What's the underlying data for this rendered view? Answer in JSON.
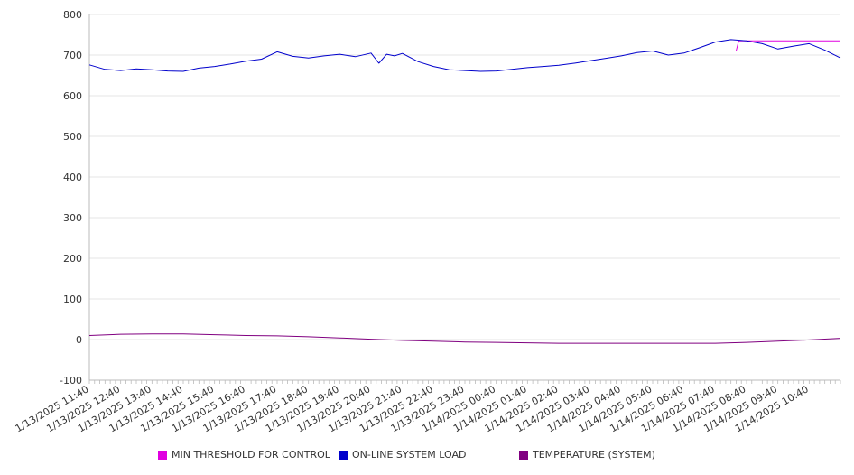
{
  "chart_data": {
    "type": "line",
    "title": "",
    "xlabel": "",
    "ylabel": "",
    "ylim": [
      -100,
      800
    ],
    "yticks": [
      -100,
      0,
      100,
      200,
      300,
      400,
      500,
      600,
      700,
      800
    ],
    "grid": true,
    "legend_position": "bottom",
    "x_range": [
      "1/13/2025 11:40",
      "1/14/2025 11:40"
    ],
    "xtick_labels": [
      "1/13/2025 11:40",
      "1/13/2025 12:40",
      "1/13/2025 13:40",
      "1/13/2025 14:40",
      "1/13/2025 15:40",
      "1/13/2025 16:40",
      "1/13/2025 17:40",
      "1/13/2025 18:40",
      "1/13/2025 19:40",
      "1/13/2025 20:40",
      "1/13/2025 21:40",
      "1/13/2025 22:40",
      "1/13/2025 23:40",
      "1/14/2025 00:40",
      "1/14/2025 01:40",
      "1/14/2025 02:40",
      "1/14/2025 03:40",
      "1/14/2025 04:40",
      "1/14/2025 05:40",
      "1/14/2025 06:40",
      "1/14/2025 07:40",
      "1/14/2025 08:40",
      "1/14/2025 09:40",
      "1/14/2025 10:40"
    ],
    "series": [
      {
        "name": "MIN THRESHOLD FOR CONTROL",
        "color": "#e000e0",
        "x": [
          "1/13/2025 11:40",
          "1/14/2025 08:20",
          "1/14/2025 08:25",
          "1/14/2025 11:40"
        ],
        "values": [
          710,
          710,
          735,
          735
        ]
      },
      {
        "name": "ON-LINE SYSTEM LOAD",
        "color": "#0000cc",
        "x": [
          "1/13/2025 11:40",
          "1/13/2025 12:10",
          "1/13/2025 12:40",
          "1/13/2025 13:10",
          "1/13/2025 13:40",
          "1/13/2025 14:10",
          "1/13/2025 14:40",
          "1/13/2025 15:10",
          "1/13/2025 15:40",
          "1/13/2025 16:10",
          "1/13/2025 16:40",
          "1/13/2025 17:10",
          "1/13/2025 17:40",
          "1/13/2025 18:10",
          "1/13/2025 18:40",
          "1/13/2025 19:10",
          "1/13/2025 19:40",
          "1/13/2025 20:10",
          "1/13/2025 20:40",
          "1/13/2025 20:55",
          "1/13/2025 21:10",
          "1/13/2025 21:25",
          "1/13/2025 21:40",
          "1/13/2025 22:10",
          "1/13/2025 22:40",
          "1/13/2025 23:10",
          "1/13/2025 23:40",
          "1/14/2025 00:10",
          "1/14/2025 00:40",
          "1/14/2025 01:10",
          "1/14/2025 01:40",
          "1/14/2025 02:10",
          "1/14/2025 02:40",
          "1/14/2025 03:10",
          "1/14/2025 03:40",
          "1/14/2025 04:10",
          "1/14/2025 04:40",
          "1/14/2025 05:10",
          "1/14/2025 05:40",
          "1/14/2025 06:10",
          "1/14/2025 06:40",
          "1/14/2025 07:10",
          "1/14/2025 07:40",
          "1/14/2025 08:10",
          "1/14/2025 08:40",
          "1/14/2025 09:10",
          "1/14/2025 09:40",
          "1/14/2025 10:10",
          "1/14/2025 10:40",
          "1/14/2025 11:10",
          "1/14/2025 11:40"
        ],
        "values": [
          676,
          665,
          662,
          666,
          664,
          661,
          660,
          668,
          672,
          678,
          685,
          690,
          708,
          697,
          693,
          698,
          702,
          696,
          705,
          680,
          702,
          698,
          704,
          684,
          672,
          664,
          662,
          660,
          661,
          665,
          669,
          672,
          675,
          680,
          686,
          692,
          698,
          706,
          710,
          700,
          705,
          718,
          732,
          738,
          735,
          728,
          715,
          722,
          728,
          712,
          693
        ]
      },
      {
        "name": "TEMPERATURE (SYSTEM)",
        "color": "#800080",
        "x": [
          "1/13/2025 11:40",
          "1/13/2025 12:40",
          "1/13/2025 13:40",
          "1/13/2025 14:40",
          "1/13/2025 15:40",
          "1/13/2025 16:40",
          "1/13/2025 17:40",
          "1/13/2025 18:40",
          "1/13/2025 19:40",
          "1/13/2025 20:40",
          "1/13/2025 21:40",
          "1/13/2025 22:40",
          "1/13/2025 23:40",
          "1/14/2025 00:40",
          "1/14/2025 01:40",
          "1/14/2025 02:40",
          "1/14/2025 03:40",
          "1/14/2025 04:40",
          "1/14/2025 05:40",
          "1/14/2025 06:40",
          "1/14/2025 07:40",
          "1/14/2025 08:40",
          "1/14/2025 09:40",
          "1/14/2025 10:40",
          "1/14/2025 11:40"
        ],
        "values": [
          10,
          13,
          14,
          14,
          12,
          10,
          9,
          7,
          4,
          1,
          -2,
          -4,
          -6,
          -7,
          -8,
          -9,
          -9,
          -9,
          -9,
          -9,
          -9,
          -7,
          -4,
          -1,
          3
        ]
      }
    ]
  }
}
